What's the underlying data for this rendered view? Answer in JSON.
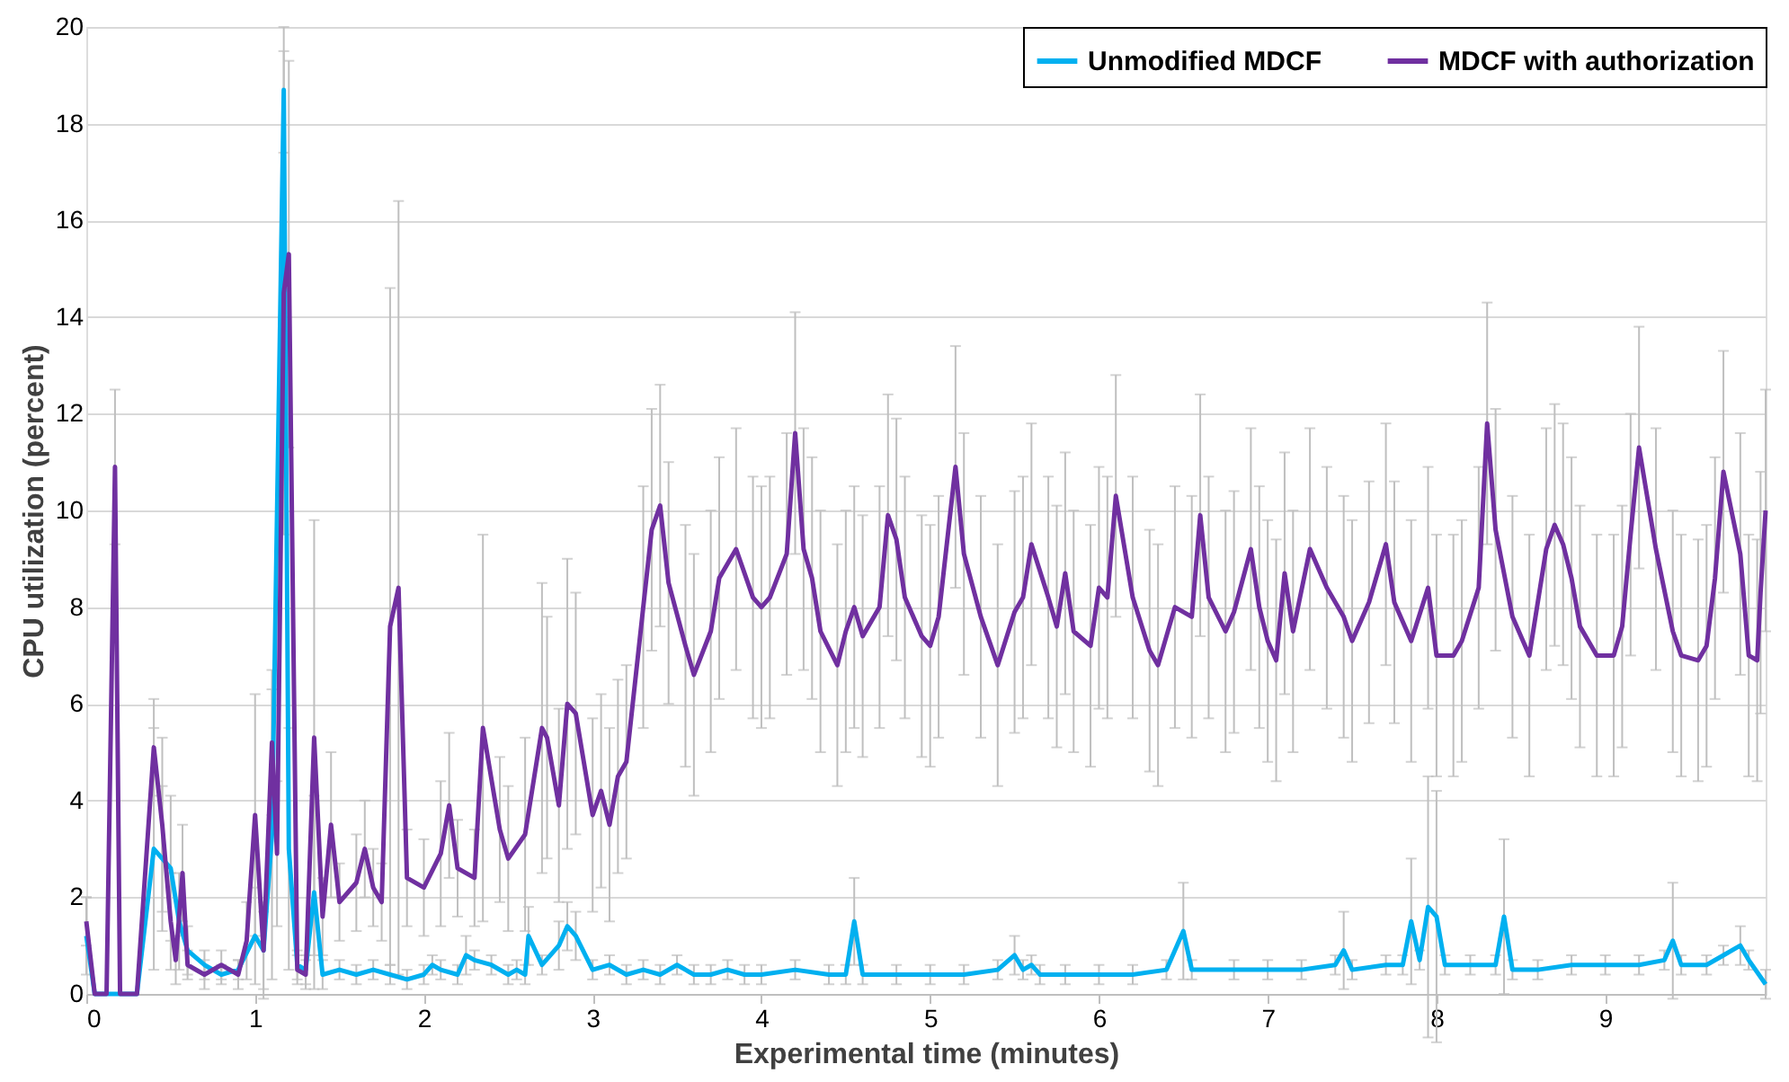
{
  "chart_data": {
    "type": "line",
    "xlabel": "Experimental time (minutes)",
    "ylabel": "CPU utilization (percent)",
    "xlim": [
      0,
      9.95
    ],
    "xticks": [
      0,
      1,
      2,
      3,
      4,
      5,
      6,
      7,
      8,
      9
    ],
    "ylim": [
      0,
      20
    ],
    "yticks": [
      0,
      2,
      4,
      6,
      8,
      10,
      12,
      14,
      16,
      18,
      20
    ],
    "grid": "y",
    "legend": "top right",
    "marker": "none",
    "line_style": "solid",
    "series": [
      {
        "name": "Unmodified MDCF",
        "color": "#00b0f0",
        "x": [
          0,
          0.05,
          0.3,
          0.4,
          0.45,
          0.5,
          0.55,
          0.6,
          0.7,
          0.8,
          0.9,
          1.0,
          1.05,
          1.1,
          1.17,
          1.2,
          1.25,
          1.3,
          1.35,
          1.4,
          1.5,
          1.6,
          1.7,
          1.8,
          1.9,
          2.0,
          2.05,
          2.1,
          2.2,
          2.25,
          2.3,
          2.4,
          2.5,
          2.55,
          2.6,
          2.62,
          2.7,
          2.8,
          2.85,
          2.9,
          3.0,
          3.1,
          3.2,
          3.3,
          3.4,
          3.5,
          3.6,
          3.7,
          3.8,
          3.9,
          4.0,
          4.2,
          4.4,
          4.5,
          4.55,
          4.6,
          4.8,
          5.0,
          5.2,
          5.4,
          5.5,
          5.55,
          5.6,
          5.65,
          5.8,
          6.0,
          6.2,
          6.4,
          6.5,
          6.55,
          6.8,
          7.0,
          7.2,
          7.4,
          7.45,
          7.5,
          7.7,
          7.8,
          7.85,
          7.9,
          7.95,
          8.0,
          8.05,
          8.2,
          8.35,
          8.4,
          8.45,
          8.6,
          8.8,
          9.0,
          9.2,
          9.35,
          9.4,
          9.45,
          9.6,
          9.7,
          9.8,
          9.85,
          9.95
        ],
        "values": [
          1.2,
          0,
          0,
          3.0,
          2.8,
          2.6,
          1.5,
          0.9,
          0.6,
          0.4,
          0.5,
          1.2,
          0.9,
          3.3,
          18.7,
          3.0,
          0.6,
          0.5,
          2.1,
          0.4,
          0.5,
          0.4,
          0.5,
          0.4,
          0.3,
          0.4,
          0.6,
          0.5,
          0.4,
          0.8,
          0.7,
          0.6,
          0.4,
          0.5,
          0.4,
          1.2,
          0.6,
          1.0,
          1.4,
          1.2,
          0.5,
          0.6,
          0.4,
          0.5,
          0.4,
          0.6,
          0.4,
          0.4,
          0.5,
          0.4,
          0.4,
          0.5,
          0.4,
          0.4,
          1.5,
          0.4,
          0.4,
          0.4,
          0.4,
          0.5,
          0.8,
          0.5,
          0.6,
          0.4,
          0.4,
          0.4,
          0.4,
          0.5,
          1.3,
          0.5,
          0.5,
          0.5,
          0.5,
          0.6,
          0.9,
          0.5,
          0.6,
          0.6,
          1.5,
          0.7,
          1.8,
          1.6,
          0.6,
          0.6,
          0.6,
          1.6,
          0.5,
          0.5,
          0.6,
          0.6,
          0.6,
          0.7,
          1.1,
          0.6,
          0.6,
          0.8,
          1.0,
          0.7,
          0.2
        ],
        "errors": [
          0.8,
          null,
          null,
          2.5,
          1.5,
          1.5,
          1.0,
          0.5,
          0.3,
          0.2,
          0.2,
          1.0,
          0.8,
          3.0,
          1.3,
          2.5,
          0.3,
          0.3,
          2.0,
          0.3,
          0.2,
          0.2,
          0.2,
          0.2,
          0.2,
          0.2,
          0.2,
          0.2,
          0.2,
          0.4,
          0.2,
          0.2,
          0.2,
          0.2,
          0.2,
          0.6,
          0.2,
          0.5,
          0.5,
          0.5,
          0.2,
          0.2,
          0.2,
          0.2,
          0.2,
          0.2,
          0.2,
          0.2,
          0.2,
          0.2,
          0.2,
          0.2,
          0.2,
          0.2,
          0.9,
          0.2,
          0.2,
          0.2,
          0.2,
          0.2,
          0.4,
          0.2,
          0.2,
          0.2,
          0.2,
          0.2,
          0.2,
          0.2,
          1.0,
          0.2,
          0.2,
          0.2,
          0.2,
          0.2,
          0.8,
          0.2,
          0.2,
          0.2,
          1.3,
          0.2,
          2.7,
          2.6,
          0.2,
          0.2,
          0.2,
          1.6,
          0.2,
          0.2,
          0.2,
          0.2,
          0.2,
          0.2,
          1.2,
          0.2,
          0.2,
          0.2,
          0.4,
          0.2,
          0.3
        ]
      },
      {
        "name": "MDCF with authorization",
        "color": "#7030a0",
        "x": [
          0,
          0.05,
          0.12,
          0.17,
          0.2,
          0.3,
          0.4,
          0.45,
          0.5,
          0.53,
          0.57,
          0.6,
          0.7,
          0.8,
          0.9,
          0.95,
          1.0,
          1.05,
          1.1,
          1.13,
          1.17,
          1.2,
          1.25,
          1.3,
          1.35,
          1.4,
          1.45,
          1.5,
          1.6,
          1.65,
          1.7,
          1.75,
          1.8,
          1.85,
          1.9,
          2.0,
          2.1,
          2.15,
          2.2,
          2.3,
          2.35,
          2.45,
          2.5,
          2.6,
          2.7,
          2.73,
          2.8,
          2.85,
          2.9,
          3.0,
          3.05,
          3.1,
          3.15,
          3.2,
          3.3,
          3.35,
          3.4,
          3.45,
          3.55,
          3.6,
          3.7,
          3.75,
          3.85,
          3.95,
          4.0,
          4.05,
          4.15,
          4.2,
          4.25,
          4.3,
          4.35,
          4.45,
          4.5,
          4.55,
          4.6,
          4.7,
          4.75,
          4.8,
          4.85,
          4.95,
          5.0,
          5.05,
          5.15,
          5.2,
          5.3,
          5.4,
          5.5,
          5.55,
          5.6,
          5.7,
          5.75,
          5.8,
          5.85,
          5.95,
          6.0,
          6.05,
          6.1,
          6.2,
          6.3,
          6.35,
          6.45,
          6.55,
          6.6,
          6.65,
          6.75,
          6.8,
          6.9,
          6.95,
          7.0,
          7.05,
          7.1,
          7.15,
          7.25,
          7.35,
          7.45,
          7.5,
          7.6,
          7.7,
          7.75,
          7.85,
          7.95,
          8.0,
          8.1,
          8.15,
          8.25,
          8.3,
          8.35,
          8.45,
          8.55,
          8.65,
          8.7,
          8.75,
          8.8,
          8.85,
          8.95,
          9.05,
          9.1,
          9.15,
          9.2,
          9.3,
          9.4,
          9.45,
          9.55,
          9.6,
          9.65,
          9.7,
          9.8,
          9.85,
          9.9,
          9.92,
          9.95
        ],
        "values": [
          1.5,
          0,
          0,
          10.9,
          0,
          0,
          5.1,
          3.5,
          1.5,
          0.7,
          2.5,
          0.6,
          0.4,
          0.6,
          0.4,
          1.1,
          3.7,
          0.9,
          5.2,
          2.9,
          14.5,
          15.3,
          0.5,
          0.4,
          5.3,
          1.6,
          3.5,
          1.9,
          2.3,
          3.0,
          2.2,
          1.9,
          7.6,
          8.4,
          2.4,
          2.2,
          2.9,
          3.9,
          2.6,
          2.4,
          5.5,
          3.4,
          2.8,
          3.3,
          5.5,
          5.3,
          3.9,
          6.0,
          5.8,
          3.7,
          4.2,
          3.5,
          4.5,
          4.8,
          8.0,
          9.6,
          10.1,
          8.5,
          7.2,
          6.6,
          7.5,
          8.6,
          9.2,
          8.2,
          8.0,
          8.2,
          9.1,
          11.6,
          9.2,
          8.6,
          7.5,
          6.8,
          7.5,
          8.0,
          7.4,
          8.0,
          9.9,
          9.4,
          8.2,
          7.4,
          7.2,
          7.8,
          10.9,
          9.1,
          7.8,
          6.8,
          7.9,
          8.2,
          9.3,
          8.2,
          7.6,
          8.7,
          7.5,
          7.2,
          8.4,
          8.2,
          10.3,
          8.2,
          7.1,
          6.8,
          8.0,
          7.8,
          9.9,
          8.2,
          7.5,
          7.9,
          9.2,
          8.0,
          7.3,
          6.9,
          8.7,
          7.5,
          9.2,
          8.4,
          7.8,
          7.3,
          8.1,
          9.3,
          8.1,
          7.3,
          8.4,
          7.0,
          7.0,
          7.3,
          8.4,
          11.8,
          9.6,
          7.8,
          7.0,
          9.2,
          9.7,
          9.3,
          8.6,
          7.6,
          7.0,
          7.0,
          7.6,
          9.5,
          11.3,
          9.2,
          7.5,
          7.0,
          6.9,
          7.2,
          8.6,
          10.8,
          9.1,
          7.0,
          6.9,
          8.3,
          10.0
        ],
        "errors": [
          0.5,
          null,
          null,
          1.6,
          null,
          null,
          1.0,
          1.8,
          1.0,
          0.5,
          1.0,
          0.3,
          0.3,
          0.3,
          0.3,
          0.8,
          2.5,
          1.0,
          1.5,
          1.5,
          5.0,
          4.0,
          0.3,
          0.3,
          4.5,
          0.8,
          1.5,
          0.8,
          1.0,
          1.0,
          0.8,
          0.8,
          7.0,
          8.0,
          1.0,
          1.0,
          1.5,
          1.5,
          1.0,
          1.0,
          4.0,
          1.5,
          1.5,
          2.0,
          3.0,
          2.5,
          2.0,
          3.0,
          2.5,
          2.0,
          2.0,
          2.0,
          2.0,
          2.0,
          2.5,
          2.5,
          2.5,
          2.5,
          2.5,
          2.5,
          2.5,
          2.5,
          2.5,
          2.5,
          2.5,
          2.5,
          2.5,
          2.5,
          2.5,
          2.5,
          2.5,
          2.5,
          2.5,
          2.5,
          2.5,
          2.5,
          2.5,
          2.5,
          2.5,
          2.5,
          2.5,
          2.5,
          2.5,
          2.5,
          2.5,
          2.5,
          2.5,
          2.5,
          2.5,
          2.5,
          2.5,
          2.5,
          2.5,
          2.5,
          2.5,
          2.5,
          2.5,
          2.5,
          2.5,
          2.5,
          2.5,
          2.5,
          2.5,
          2.5,
          2.5,
          2.5,
          2.5,
          2.5,
          2.5,
          2.5,
          2.5,
          2.5,
          2.5,
          2.5,
          2.5,
          2.5,
          2.5,
          2.5,
          2.5,
          2.5,
          2.5,
          2.5,
          2.5,
          2.5,
          2.5,
          2.5,
          2.5,
          2.5,
          2.5,
          2.5,
          2.5,
          2.5,
          2.5,
          2.5,
          2.5,
          2.5,
          2.5,
          2.5,
          2.5,
          2.5,
          2.5,
          2.5,
          2.5,
          2.5,
          2.5,
          2.5,
          2.5,
          2.5,
          2.5,
          2.5,
          2.5
        ]
      }
    ]
  }
}
